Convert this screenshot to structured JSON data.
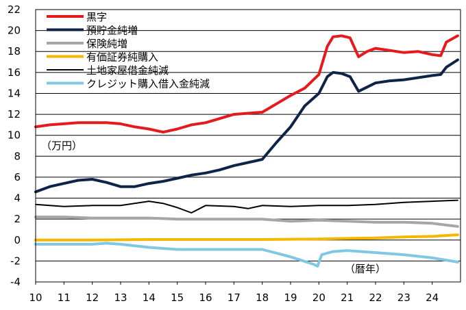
{
  "chart_data": {
    "type": "line",
    "ylabel": "（万円）",
    "xlabel": "（暦年）",
    "ylim": [
      -4,
      22
    ],
    "yticks": [
      "-4",
      "-2",
      "0",
      "2",
      "4",
      "6",
      "8",
      "10",
      "12",
      "14",
      "16",
      "18",
      "20",
      "22"
    ],
    "xlim": [
      10,
      25
    ],
    "xticks": [
      "10",
      "11",
      "12",
      "13",
      "14",
      "15",
      "16",
      "17",
      "18",
      "19",
      "20",
      "21",
      "22",
      "23",
      "24"
    ],
    "grid": true,
    "legend_position": "top-left",
    "series": [
      {
        "name": "黒字",
        "color": "#e41a1c",
        "points": [
          [
            10,
            10.8
          ],
          [
            10.5,
            11.0
          ],
          [
            11,
            11.1
          ],
          [
            11.5,
            11.2
          ],
          [
            12,
            11.2
          ],
          [
            12.5,
            11.2
          ],
          [
            13,
            11.1
          ],
          [
            13.5,
            10.8
          ],
          [
            14,
            10.6
          ],
          [
            14.5,
            10.3
          ],
          [
            15,
            10.6
          ],
          [
            15.5,
            11.0
          ],
          [
            16,
            11.2
          ],
          [
            16.5,
            11.6
          ],
          [
            17,
            12.0
          ],
          [
            17.5,
            12.1
          ],
          [
            18,
            12.2
          ],
          [
            18.5,
            13.0
          ],
          [
            19,
            13.8
          ],
          [
            19.5,
            14.5
          ],
          [
            20,
            15.8
          ],
          [
            20.3,
            18.5
          ],
          [
            20.5,
            19.4
          ],
          [
            20.8,
            19.5
          ],
          [
            21.1,
            19.3
          ],
          [
            21.4,
            17.5
          ],
          [
            21.7,
            18.0
          ],
          [
            22,
            18.3
          ],
          [
            22.5,
            18.1
          ],
          [
            23,
            17.9
          ],
          [
            23.5,
            18.0
          ],
          [
            24,
            17.7
          ],
          [
            24.3,
            17.6
          ],
          [
            24.5,
            18.9
          ],
          [
            24.9,
            19.5
          ]
        ]
      },
      {
        "name": "預貯金純増",
        "color": "#0d2447",
        "points": [
          [
            10,
            4.6
          ],
          [
            10.5,
            5.1
          ],
          [
            11,
            5.4
          ],
          [
            11.5,
            5.7
          ],
          [
            12,
            5.8
          ],
          [
            12.5,
            5.5
          ],
          [
            13,
            5.1
          ],
          [
            13.5,
            5.1
          ],
          [
            14,
            5.4
          ],
          [
            14.5,
            5.6
          ],
          [
            15,
            5.9
          ],
          [
            15.5,
            6.2
          ],
          [
            16,
            6.4
          ],
          [
            16.5,
            6.7
          ],
          [
            17,
            7.1
          ],
          [
            17.5,
            7.4
          ],
          [
            18,
            7.7
          ],
          [
            18.5,
            9.3
          ],
          [
            19,
            10.8
          ],
          [
            19.5,
            12.8
          ],
          [
            20,
            14.0
          ],
          [
            20.3,
            15.6
          ],
          [
            20.5,
            16.0
          ],
          [
            20.8,
            15.9
          ],
          [
            21.1,
            15.6
          ],
          [
            21.4,
            14.2
          ],
          [
            21.7,
            14.6
          ],
          [
            22,
            15.0
          ],
          [
            22.5,
            15.2
          ],
          [
            23,
            15.3
          ],
          [
            23.5,
            15.5
          ],
          [
            24,
            15.7
          ],
          [
            24.3,
            15.8
          ],
          [
            24.5,
            16.5
          ],
          [
            24.9,
            17.2
          ]
        ]
      },
      {
        "name": "保険純増",
        "color": "#a6a6a6",
        "points": [
          [
            10,
            2.2
          ],
          [
            11,
            2.2
          ],
          [
            12,
            2.1
          ],
          [
            13,
            2.1
          ],
          [
            14,
            2.1
          ],
          [
            15,
            2.0
          ],
          [
            16,
            2.0
          ],
          [
            17,
            2.0
          ],
          [
            18,
            2.0
          ],
          [
            19,
            1.8
          ],
          [
            20,
            1.9
          ],
          [
            21,
            1.8
          ],
          [
            22,
            1.7
          ],
          [
            23,
            1.7
          ],
          [
            24,
            1.6
          ],
          [
            24.9,
            1.3
          ]
        ]
      },
      {
        "name": "有価証券純購入",
        "color": "#f5b800",
        "points": [
          [
            10,
            0.0
          ],
          [
            12,
            0.0
          ],
          [
            14,
            0.05
          ],
          [
            16,
            0.05
          ],
          [
            18,
            0.05
          ],
          [
            20,
            0.1
          ],
          [
            22,
            0.2
          ],
          [
            23,
            0.3
          ],
          [
            24,
            0.35
          ],
          [
            24.9,
            0.5
          ]
        ]
      },
      {
        "name": "土地家屋借金純減",
        "color": "#000000",
        "points": [
          [
            10,
            3.4
          ],
          [
            11,
            3.2
          ],
          [
            12,
            3.3
          ],
          [
            13,
            3.3
          ],
          [
            14,
            3.7
          ],
          [
            14.5,
            3.5
          ],
          [
            15,
            3.1
          ],
          [
            15.5,
            2.6
          ],
          [
            16,
            3.3
          ],
          [
            17,
            3.2
          ],
          [
            17.5,
            3.0
          ],
          [
            18,
            3.3
          ],
          [
            19,
            3.2
          ],
          [
            20,
            3.3
          ],
          [
            21,
            3.3
          ],
          [
            22,
            3.4
          ],
          [
            23,
            3.6
          ],
          [
            24,
            3.7
          ],
          [
            24.9,
            3.8
          ]
        ]
      },
      {
        "name": "クレジット購入借入金純減",
        "color": "#7ec8e3",
        "points": [
          [
            10,
            -0.4
          ],
          [
            11,
            -0.4
          ],
          [
            12,
            -0.4
          ],
          [
            12.5,
            -0.3
          ],
          [
            13,
            -0.4
          ],
          [
            14,
            -0.7
          ],
          [
            15,
            -0.9
          ],
          [
            16,
            -0.9
          ],
          [
            17,
            -0.9
          ],
          [
            18,
            -0.9
          ],
          [
            19,
            -1.6
          ],
          [
            19.8,
            -2.3
          ],
          [
            19.95,
            -2.5
          ],
          [
            20.1,
            -1.4
          ],
          [
            20.5,
            -1.1
          ],
          [
            21,
            -1.0
          ],
          [
            22,
            -1.2
          ],
          [
            23,
            -1.4
          ],
          [
            24,
            -1.7
          ],
          [
            24.9,
            -2.1
          ]
        ]
      }
    ]
  }
}
